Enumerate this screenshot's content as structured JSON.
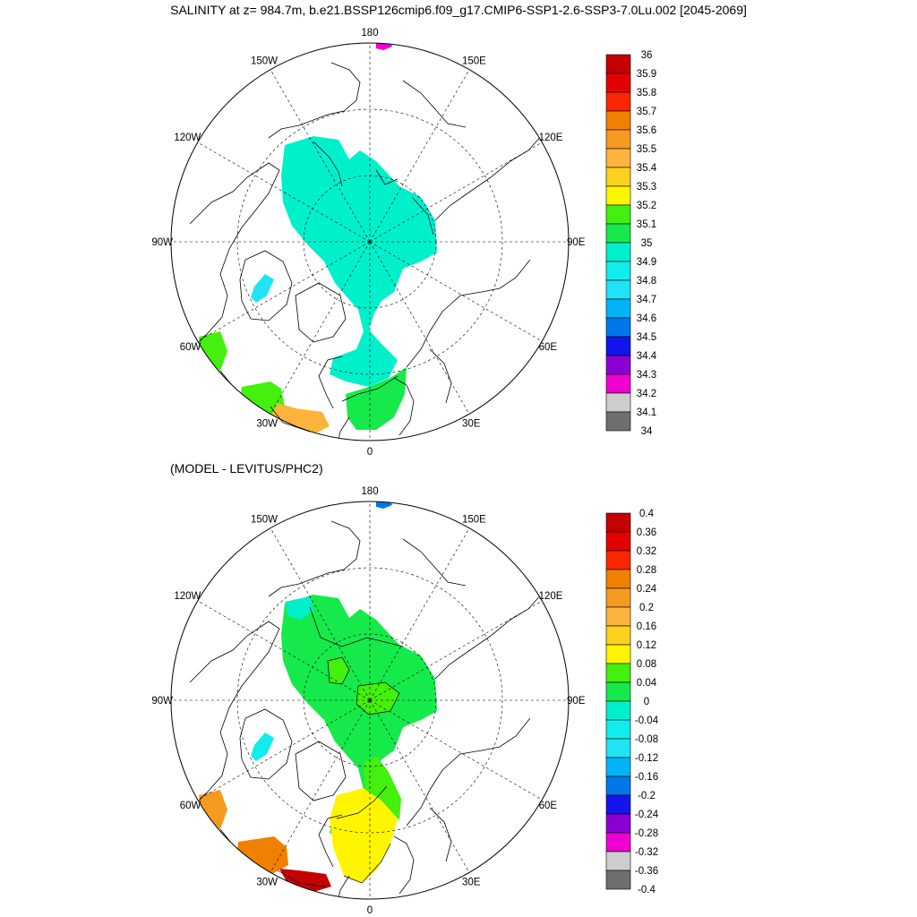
{
  "title": "SALINITY at z= 984.7m, b.e21.BSSP126cmip6.f09_g17.CMIP6-SSP1-2.6-SSP3-7.0Lu.002 [2045-2069]",
  "subtitle": "(MODEL - LEVITUS/PHC2)",
  "lon_labels": [
    "180",
    "150E",
    "120E",
    "90E",
    "60E",
    "30E",
    "0",
    "30W",
    "60W",
    "90W",
    "120W",
    "150W"
  ],
  "colors": {
    "ocean_main_top": "#00f0cc",
    "ocean_main_bottom": "#16ea4a",
    "ocean_light_blue": "#22e6ee",
    "green": "#44f011",
    "yellow": "#fff000",
    "orange": "#f5a030",
    "red": "#dd0000",
    "magenta": "#ee00ee",
    "blue": "#0080e8"
  },
  "colorbars": {
    "top": {
      "labels": [
        "36",
        "35.9",
        "35.8",
        "35.7",
        "35.6",
        "35.5",
        "35.4",
        "35.3",
        "35.2",
        "35.1",
        "35",
        "34.9",
        "34.8",
        "34.7",
        "34.6",
        "34.5",
        "34.4",
        "34.3",
        "34.2",
        "34.1",
        "34"
      ],
      "colors": [
        "#c40000",
        "#e40000",
        "#fa2600",
        "#f08000",
        "#f69a20",
        "#fcb43c",
        "#fcd21e",
        "#fff500",
        "#44f00e",
        "#16ea4a",
        "#00f0cc",
        "#12ecec",
        "#20e4f6",
        "#00b4f8",
        "#0078e8",
        "#1414ee",
        "#8a00d4",
        "#ee00d2",
        "#cdcdcd",
        "#6e6e6e"
      ]
    },
    "bottom": {
      "labels": [
        "0.4",
        "0.36",
        "0.32",
        "0.28",
        "0.24",
        "0.2",
        "0.16",
        "0.12",
        "0.08",
        "0.04",
        "0",
        "-0.04",
        "-0.08",
        "-0.12",
        "-0.16",
        "-0.2",
        "-0.24",
        "-0.28",
        "-0.32",
        "-0.36",
        "-0.4"
      ],
      "colors": [
        "#c40000",
        "#e40000",
        "#fa2600",
        "#f08000",
        "#f69a20",
        "#fcb43c",
        "#fcd21e",
        "#fff500",
        "#44f00e",
        "#16ea4a",
        "#00f0cc",
        "#12ecec",
        "#20e4f6",
        "#00b4f8",
        "#0078e8",
        "#1414ee",
        "#8a00d4",
        "#ee00d2",
        "#cdcdcd",
        "#6e6e6e"
      ]
    }
  }
}
